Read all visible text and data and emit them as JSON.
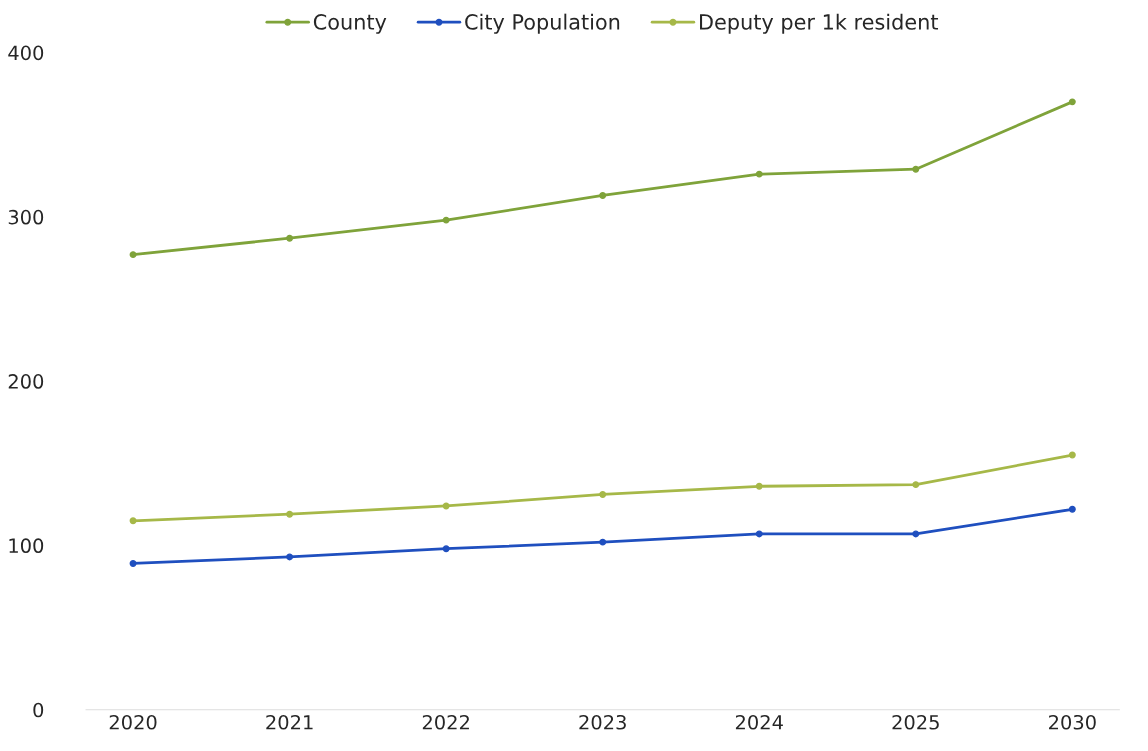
{
  "chart_data": {
    "type": "line",
    "categories": [
      "2020",
      "2021",
      "2022",
      "2023",
      "2024",
      "2025",
      "2030"
    ],
    "series": [
      {
        "name": "County",
        "color": "#7fa33a",
        "values": [
          277,
          287,
          298,
          313,
          326,
          329,
          370
        ]
      },
      {
        "name": "City Population",
        "color": "#1f4fbf",
        "values": [
          89,
          93,
          98,
          102,
          107,
          107,
          122
        ]
      },
      {
        "name": "Deputy per 1k resident",
        "color": "#a6b848",
        "values": [
          115,
          119,
          124,
          131,
          136,
          137,
          155
        ]
      }
    ],
    "ylim": [
      0,
      400
    ],
    "yticks": [
      0,
      100,
      200,
      300,
      400
    ],
    "grid": false,
    "legend": "top",
    "marker": "circle",
    "line_style": "solid"
  }
}
